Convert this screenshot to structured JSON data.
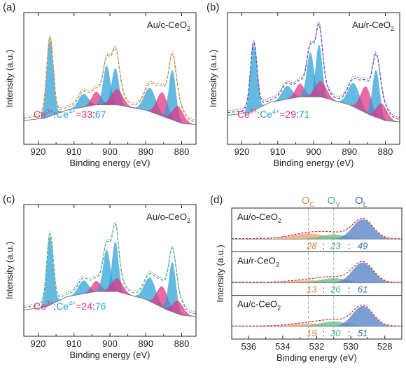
{
  "chart_data": [
    {
      "type": "area",
      "panel_label": "(a)",
      "sample_label_main": "Au/c-CeO",
      "sample_label_sub": "2",
      "xlabel": "Binding energy (eV)",
      "ylabel": "Intensity (a.u.)",
      "x_reversed": true,
      "xlim": [
        924,
        876
      ],
      "ylim": [
        0,
        100
      ],
      "x_ticks": [
        920,
        910,
        900,
        890,
        880
      ],
      "ratio": {
        "ce3": "Ce",
        "sup3": "3+",
        "ce4": "Ce",
        "sup4": "4+",
        "eq": "=",
        "v3": "33",
        "colon": ":",
        "v4": "67"
      },
      "colors": {
        "ce3": "#e0307f",
        "ce4": "#2a9fd6",
        "fit": "#e07a3a",
        "raw": "#6fb86f"
      },
      "baseline": [
        [
          924,
          18
        ],
        [
          918,
          20
        ],
        [
          912,
          26
        ],
        [
          904,
          30
        ],
        [
          898,
          30
        ],
        [
          890,
          26
        ],
        [
          884,
          20
        ],
        [
          880,
          16
        ],
        [
          876,
          15
        ]
      ],
      "peaks": [
        {
          "center": 916.7,
          "width": 0.9,
          "height": 58,
          "type": "ce4"
        },
        {
          "center": 907.4,
          "width": 1.4,
          "height": 10,
          "type": "ce4"
        },
        {
          "center": 903.8,
          "width": 1.3,
          "height": 10,
          "type": "ce3"
        },
        {
          "center": 900.9,
          "width": 1.0,
          "height": 30,
          "type": "ce4"
        },
        {
          "center": 898.5,
          "width": 1.0,
          "height": 28,
          "type": "ce4"
        },
        {
          "center": 898.0,
          "width": 1.6,
          "height": 12,
          "type": "ce3"
        },
        {
          "center": 888.8,
          "width": 1.6,
          "height": 18,
          "type": "ce4"
        },
        {
          "center": 885.4,
          "width": 1.5,
          "height": 18,
          "type": "ce3"
        },
        {
          "center": 882.6,
          "width": 1.0,
          "height": 38,
          "type": "ce4"
        },
        {
          "center": 881.0,
          "width": 1.5,
          "height": 12,
          "type": "ce3"
        }
      ]
    },
    {
      "type": "area",
      "panel_label": "(b)",
      "sample_label_main": "Au/r-CeO",
      "sample_label_sub": "2",
      "xlabel": "Binding energy (eV)",
      "ylabel": "Intensity (a.u.)",
      "x_reversed": true,
      "xlim": [
        924,
        876
      ],
      "ylim": [
        0,
        100
      ],
      "x_ticks": [
        920,
        910,
        900,
        890,
        880
      ],
      "ratio": {
        "ce3": "Ce",
        "sup3": "3+",
        "ce4": "Ce",
        "sup4": "4+",
        "eq": "=",
        "v3": "29",
        "colon": ":",
        "v4": "71"
      },
      "colors": {
        "ce3": "#e0307f",
        "ce4": "#2a9fd6",
        "fit": "#2f6fb5",
        "raw": "#e0307f"
      },
      "baseline": [
        [
          924,
          22
        ],
        [
          918,
          24
        ],
        [
          912,
          32
        ],
        [
          904,
          36
        ],
        [
          898,
          36
        ],
        [
          890,
          30
        ],
        [
          884,
          22
        ],
        [
          880,
          18
        ],
        [
          876,
          17
        ]
      ],
      "peaks": [
        {
          "center": 916.7,
          "width": 0.9,
          "height": 50,
          "type": "ce4"
        },
        {
          "center": 907.4,
          "width": 1.4,
          "height": 10,
          "type": "ce4"
        },
        {
          "center": 903.8,
          "width": 1.3,
          "height": 10,
          "type": "ce3"
        },
        {
          "center": 900.9,
          "width": 1.0,
          "height": 34,
          "type": "ce4"
        },
        {
          "center": 898.5,
          "width": 0.9,
          "height": 40,
          "type": "ce4"
        },
        {
          "center": 898.0,
          "width": 1.6,
          "height": 12,
          "type": "ce3"
        },
        {
          "center": 888.8,
          "width": 1.6,
          "height": 18,
          "type": "ce4"
        },
        {
          "center": 885.4,
          "width": 1.5,
          "height": 20,
          "type": "ce3"
        },
        {
          "center": 882.6,
          "width": 1.0,
          "height": 36,
          "type": "ce4"
        },
        {
          "center": 881.0,
          "width": 1.5,
          "height": 12,
          "type": "ce3"
        }
      ]
    },
    {
      "type": "area",
      "panel_label": "(c)",
      "sample_label_main": "Au/o-CeO",
      "sample_label_sub": "2",
      "xlabel": "Binding energy (eV)",
      "ylabel": "Intensity (a.u.)",
      "x_reversed": true,
      "xlim": [
        924,
        876
      ],
      "ylim": [
        0,
        100
      ],
      "x_ticks": [
        920,
        910,
        900,
        890,
        880
      ],
      "ratio": {
        "ce3": "Ce",
        "sup3": "3+",
        "ce4": "Ce",
        "sup4": "4+",
        "eq": "=",
        "v3": "24",
        "colon": ":",
        "v4": "76"
      },
      "colors": {
        "ce3": "#e0307f",
        "ce4": "#2a9fd6",
        "fit": "#4bb38a",
        "raw": "#9a9a9a"
      },
      "baseline": [
        [
          924,
          20
        ],
        [
          918,
          22
        ],
        [
          912,
          30
        ],
        [
          904,
          34
        ],
        [
          898,
          34
        ],
        [
          890,
          28
        ],
        [
          884,
          20
        ],
        [
          880,
          16
        ],
        [
          876,
          15
        ]
      ],
      "peaks": [
        {
          "center": 916.7,
          "width": 0.9,
          "height": 52,
          "type": "ce4"
        },
        {
          "center": 907.4,
          "width": 1.4,
          "height": 10,
          "type": "ce4"
        },
        {
          "center": 903.8,
          "width": 1.3,
          "height": 8,
          "type": "ce3"
        },
        {
          "center": 900.9,
          "width": 1.0,
          "height": 32,
          "type": "ce4"
        },
        {
          "center": 898.5,
          "width": 0.9,
          "height": 38,
          "type": "ce4"
        },
        {
          "center": 898.0,
          "width": 1.6,
          "height": 10,
          "type": "ce3"
        },
        {
          "center": 888.8,
          "width": 1.6,
          "height": 18,
          "type": "ce4"
        },
        {
          "center": 885.4,
          "width": 1.5,
          "height": 16,
          "type": "ce3"
        },
        {
          "center": 882.6,
          "width": 1.0,
          "height": 38,
          "type": "ce4"
        },
        {
          "center": 881.0,
          "width": 1.5,
          "height": 10,
          "type": "ce3"
        }
      ]
    },
    {
      "type": "area",
      "panel_label": "(d)",
      "xlabel": "Binding energy (eV)",
      "ylabel": "Intensity (a.u.)",
      "x_reversed": true,
      "xlim": [
        537,
        527
      ],
      "x_ticks": [
        536,
        534,
        532,
        530,
        528
      ],
      "peak_labels": [
        {
          "base": "O",
          "sub": "C",
          "center": 532.5,
          "color": "#e0853a"
        },
        {
          "base": "O",
          "sub": "V",
          "center": 531.0,
          "color": "#45b07a"
        },
        {
          "base": "O",
          "sub": "L",
          "center": 529.4,
          "color": "#2f6fb5"
        }
      ],
      "colors": {
        "oc": "#f0a470",
        "ov": "#6cc090",
        "ol": "#5a86c8",
        "fit": "#cc2233"
      },
      "subpanels": [
        {
          "sample_main": "Au/o-CeO",
          "sample_sub": "2",
          "values": [
            "28",
            "23",
            "49"
          ],
          "sep": ":",
          "peaks": [
            {
              "center": 532.5,
              "width": 1.0,
              "height": 0.22,
              "type": "oc"
            },
            {
              "center": 531.0,
              "width": 0.8,
              "height": 0.18,
              "type": "ov"
            },
            {
              "center": 529.3,
              "width": 0.6,
              "height": 0.78,
              "type": "ol"
            }
          ]
        },
        {
          "sample_main": "Au/r-CeO",
          "sample_sub": "2",
          "values": [
            "13",
            "26",
            "61"
          ],
          "sep": ":",
          "peaks": [
            {
              "center": 532.5,
              "width": 1.0,
              "height": 0.1,
              "type": "oc"
            },
            {
              "center": 531.0,
              "width": 0.8,
              "height": 0.18,
              "type": "ov"
            },
            {
              "center": 529.3,
              "width": 0.6,
              "height": 0.8,
              "type": "ol"
            }
          ]
        },
        {
          "sample_main": "Au/c-CeO",
          "sample_sub": "2",
          "values": [
            "19",
            "30",
            "51"
          ],
          "sep": ":",
          "peaks": [
            {
              "center": 532.5,
              "width": 1.0,
              "height": 0.12,
              "type": "oc"
            },
            {
              "center": 531.0,
              "width": 0.8,
              "height": 0.2,
              "type": "ov"
            },
            {
              "center": 529.3,
              "width": 0.6,
              "height": 0.8,
              "type": "ol"
            }
          ]
        }
      ]
    }
  ]
}
